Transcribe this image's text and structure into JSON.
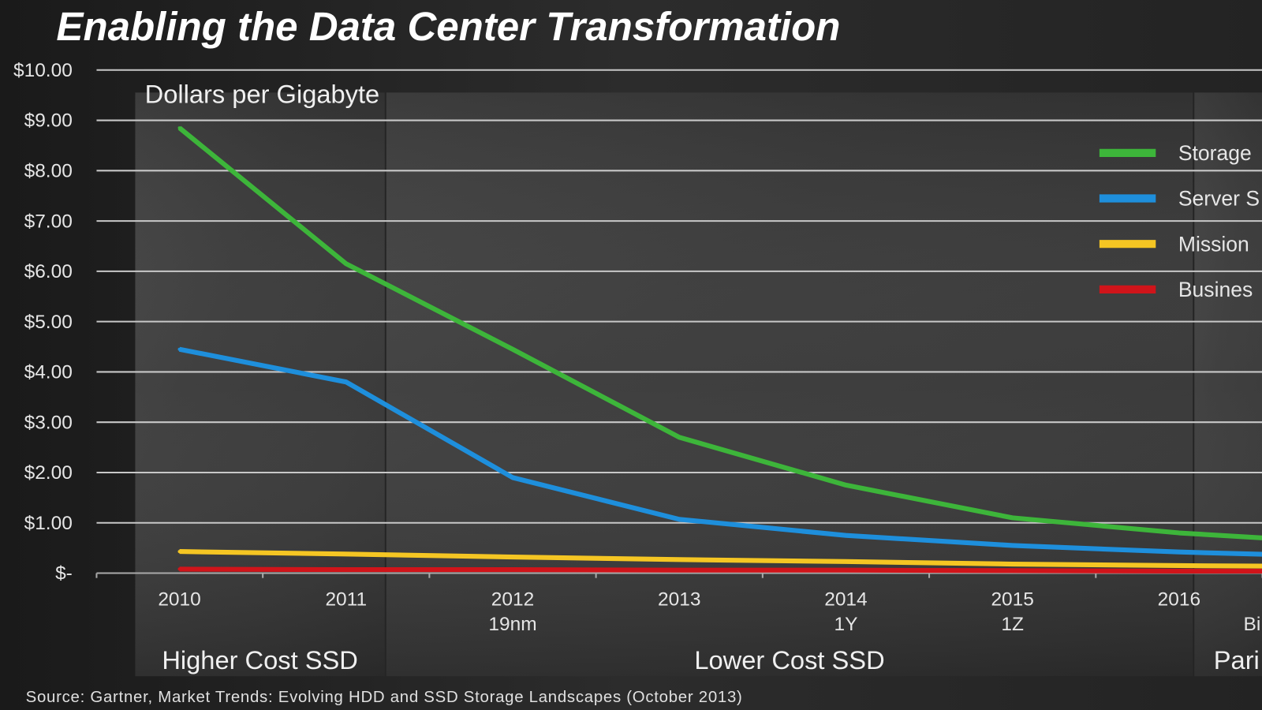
{
  "chart_data": {
    "type": "line",
    "title": "Enabling the Data Center Transformation",
    "subtitle": "Dollars per Gigabyte",
    "source": "Source: Gartner, Market Trends: Evolving HDD and SSD Storage Landscapes (October 2013)",
    "ylim": [
      0,
      10
    ],
    "yticks": [
      "$-",
      "$1.00",
      "$2.00",
      "$3.00",
      "$4.00",
      "$5.00",
      "$6.00",
      "$7.00",
      "$8.00",
      "$9.00",
      "$10.00"
    ],
    "grid": true,
    "legend_position": "right",
    "categories": [
      "2010",
      "2011",
      "2012",
      "2013",
      "2014",
      "2015",
      "2016",
      ""
    ],
    "sublabels": [
      "",
      "",
      "19nm",
      "",
      "1Y",
      "1Z",
      "",
      "Bi"
    ],
    "regions": [
      "Higher Cost SSD",
      "Lower Cost SSD",
      "Pari"
    ],
    "series": [
      {
        "name": "Storage",
        "color": "#3db53a",
        "values": [
          8.85,
          6.15,
          4.45,
          2.7,
          1.75,
          1.1,
          0.8,
          0.6
        ]
      },
      {
        "name": "Server S",
        "color": "#1e8fdc",
        "values": [
          4.45,
          3.8,
          1.9,
          1.07,
          0.75,
          0.55,
          0.42,
          0.33
        ]
      },
      {
        "name": "Mission",
        "color": "#f5c623",
        "values": [
          0.43,
          0.38,
          0.32,
          0.27,
          0.23,
          0.18,
          0.15,
          0.13
        ]
      },
      {
        "name": "Busines",
        "color": "#d0141a",
        "values": [
          0.08,
          0.07,
          0.07,
          0.06,
          0.06,
          0.05,
          0.04,
          0.04
        ]
      }
    ]
  }
}
